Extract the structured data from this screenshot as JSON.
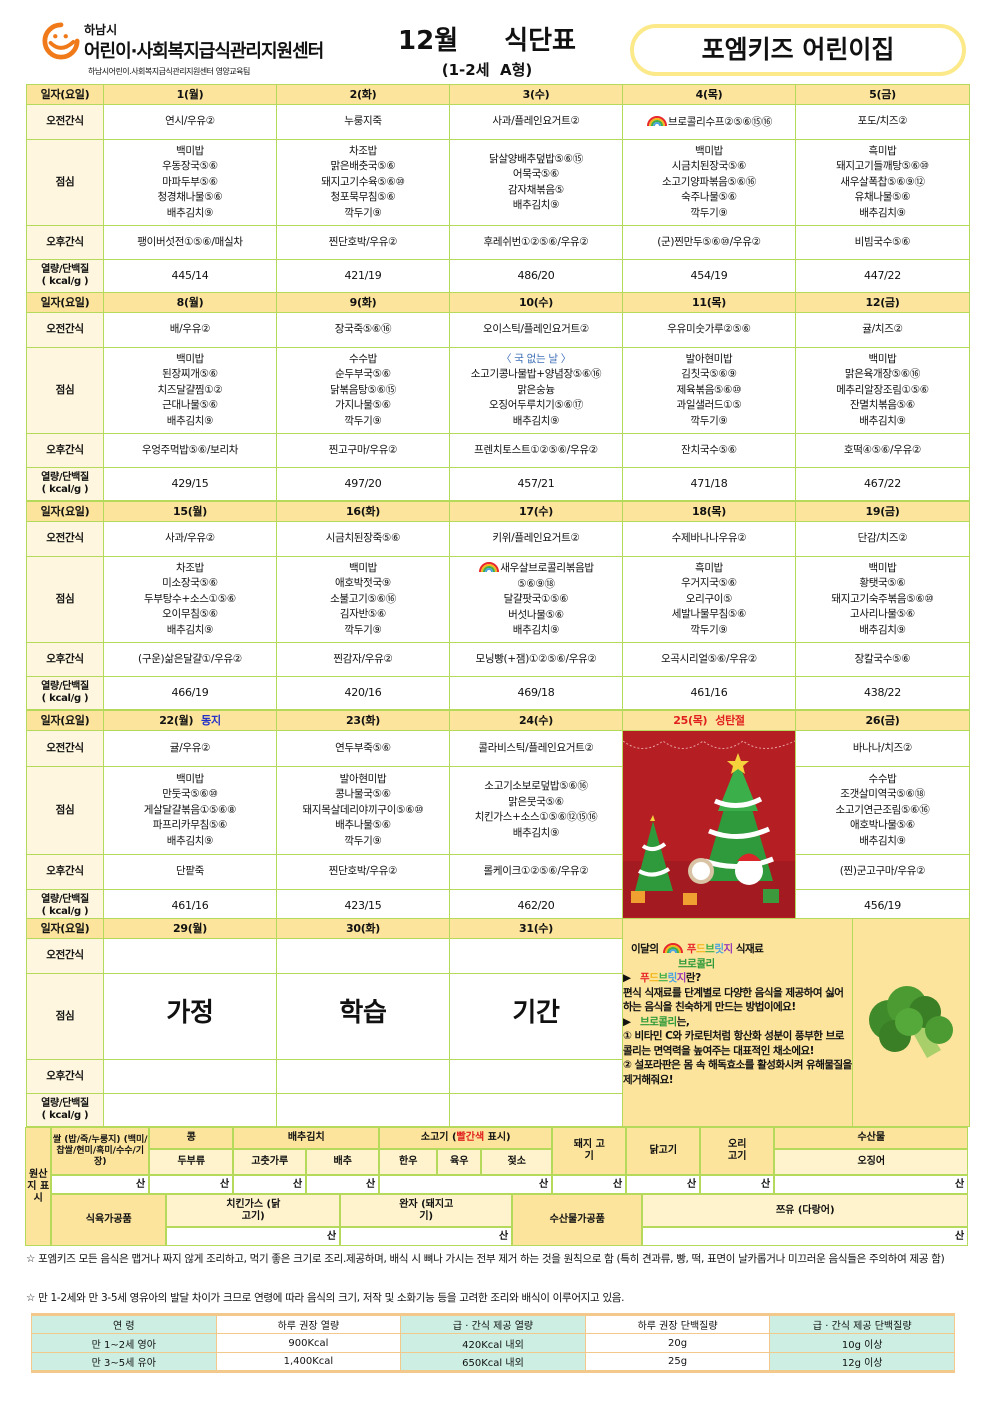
{
  "header": {
    "org_city": "하남시",
    "org_name": "어린이·사회복지급식관리지원센터",
    "org_sub": "하남시어린이.사회복지급식관리지원센터 영양교육팀",
    "title": "12월  식단표",
    "subtitle": "(1-2세  A형)",
    "school": "포엠키즈 어린이집"
  },
  "row_labels": {
    "date": "일자(요일)",
    "morning": "오전간식",
    "lunch": "점심",
    "afternoon": "오후간식",
    "nutrition_1": "열량/단백질",
    "nutrition_2": "( kcal/g )"
  },
  "weeks": [
    {
      "days": [
        {
          "date": "1(월)",
          "morning": "연시/우유②",
          "lunch": [
            "백미밥",
            "우동장국⑤⑥",
            "마파두부⑤⑥",
            "청경채나물⑤⑥",
            "배추김치⑨"
          ],
          "afternoon": "팽이버섯전①⑤⑥/매실차",
          "nutrition": "445/14"
        },
        {
          "date": "2(화)",
          "morning": "누룽지죽",
          "lunch": [
            "차조밥",
            "맑은배춧국⑤⑥",
            "돼지고기수육⑤⑥⑩",
            "청포묵무침⑤⑥",
            "깍두기⑨"
          ],
          "afternoon": "찐단호박/우유②",
          "nutrition": "421/19"
        },
        {
          "date": "3(수)",
          "morning": "사과/플레인요거트②",
          "lunch": [
            "닭살양배추덮밥⑤⑥⑮",
            "어묵국⑤⑥",
            "감자채볶음⑤",
            "배추김치⑨"
          ],
          "afternoon": "후레쉬번①②⑤⑥/우유②",
          "nutrition": "486/20"
        },
        {
          "date": "4(목)",
          "morning": "브로콜리수프②⑤⑥⑮⑯",
          "morning_icon": "rainbow-icon",
          "lunch": [
            "백미밥",
            "시금치된장국⑤⑥",
            "소고기양파볶음⑤⑥⑯",
            "숙주나물⑤⑥",
            "깍두기⑨"
          ],
          "afternoon": "(군)찐만두⑤⑥⑩/우유②",
          "nutrition": "454/19"
        },
        {
          "date": "5(금)",
          "morning": "포도/치즈②",
          "lunch": [
            "흑미밥",
            "돼지고기들깨탕⑤⑥⑩",
            "새우살폭찹⑤⑥⑨⑫",
            "유채나물⑤⑥",
            "배추김치⑨"
          ],
          "afternoon": "비빔국수⑤⑥",
          "nutrition": "447/22"
        }
      ]
    },
    {
      "days": [
        {
          "date": "8(월)",
          "morning": "배/우유②",
          "lunch": [
            "백미밥",
            "된장찌개⑤⑥",
            "치즈달걀찜①②",
            "근대나물⑤⑥",
            "배추김치⑨"
          ],
          "afternoon": "우엉주먹밥⑤⑥/보리차",
          "nutrition": "429/15"
        },
        {
          "date": "9(화)",
          "morning": "장국죽⑤⑥⑯",
          "lunch": [
            "수수밥",
            "순두부국⑤⑥",
            "닭볶음탕⑤⑥⑮",
            "가지나물⑤⑥",
            "깍두기⑨"
          ],
          "afternoon": "찐고구마/우유②",
          "nutrition": "497/20"
        },
        {
          "date": "10(수)",
          "morning": "오이스틱/플레인요거트②",
          "lunch_note": "〈 국 없는 날 〉",
          "lunch": [
            "소고기콩나물밥+양념장⑤⑥⑯",
            "맑은숭늉",
            "오징어두루치기⑤⑥⑰",
            "배추김치⑨"
          ],
          "afternoon": "프렌치토스트①②⑤⑥/우유②",
          "nutrition": "457/21"
        },
        {
          "date": "11(목)",
          "morning": "우유미숫가루②⑤⑥",
          "lunch": [
            "발아현미밥",
            "김칫국⑤⑥⑨",
            "제육볶음⑤⑥⑩",
            "과일샐러드①⑤",
            "깍두기⑨"
          ],
          "afternoon": "잔치국수⑤⑥",
          "nutrition": "471/18"
        },
        {
          "date": "12(금)",
          "morning": "귤/치즈②",
          "lunch": [
            "백미밥",
            "맑은육개장⑤⑥⑯",
            "메추리알장조림①⑤⑥",
            "잔멸치볶음⑤⑥",
            "배추김치⑨"
          ],
          "afternoon": "호떡④⑤⑥/우유②",
          "nutrition": "467/22"
        }
      ]
    },
    {
      "days": [
        {
          "date": "15(월)",
          "morning": "사과/우유②",
          "lunch": [
            "차조밥",
            "미소장국⑤⑥",
            "두부탕수+소스①⑤⑥",
            "오이무침⑤⑥",
            "배추김치⑨"
          ],
          "afternoon": "(구운)삶은달걀①/우유②",
          "nutrition": "466/19"
        },
        {
          "date": "16(화)",
          "morning": "시금치된장죽⑤⑥",
          "lunch": [
            "백미밥",
            "애호박젓국⑨",
            "소불고기⑤⑥⑯",
            "김자반⑤⑥",
            "깍두기⑨"
          ],
          "afternoon": "찐감자/우유②",
          "nutrition": "420/16"
        },
        {
          "date": "17(수)",
          "morning": "키위/플레인요거트②",
          "lunch_icon": "rainbow-icon",
          "lunch": [
            "새우살브로콜리볶음밥",
            "⑤⑥⑨⑱",
            "달걀팟국①⑤⑥",
            "버섯나물⑤⑥",
            "배추김치⑨"
          ],
          "afternoon": "모닝빵(+잼)①②⑤⑥/우유②",
          "nutrition": "469/18"
        },
        {
          "date": "18(목)",
          "morning": "수제바나나우유②",
          "lunch": [
            "흑미밥",
            "우거지국⑤⑥",
            "오리구이⑤",
            "세발나물무침⑤⑥",
            "깍두기⑨"
          ],
          "afternoon": "오곡시리얼⑤⑥/우유②",
          "nutrition": "461/16"
        },
        {
          "date": "19(금)",
          "morning": "단감/치즈②",
          "lunch": [
            "백미밥",
            "황탯국⑤⑥",
            "돼지고기숙주볶음⑤⑥⑩",
            "고사리나물⑤⑥",
            "배추김치⑨"
          ],
          "afternoon": "장칼국수⑤⑥",
          "nutrition": "438/22"
        }
      ]
    },
    {
      "days": [
        {
          "date": "22(월)",
          "note": "동지",
          "note_color": "blue",
          "morning": "귤/우유②",
          "lunch": [
            "백미밥",
            "만둣국⑤⑥⑩",
            "게살달걀볶음①⑤⑥⑧",
            "파프리카무침⑤⑥",
            "배추김치⑨"
          ],
          "afternoon": "단팥죽",
          "nutrition": "461/16"
        },
        {
          "date": "23(화)",
          "morning": "연두부죽⑤⑥",
          "lunch": [
            "발아현미밥",
            "콩나물국⑤⑥",
            "돼지목살데리야끼구이⑤⑥⑩",
            "배추나물⑤⑥",
            "깍두기⑨"
          ],
          "afternoon": "찐단호박/우유②",
          "nutrition": "423/15"
        },
        {
          "date": "24(수)",
          "morning": "콜라비스틱/플레인요거트②",
          "lunch": [
            "소고기소보로덮밥⑤⑥⑯",
            "맑은뭇국⑤⑥",
            "치킨가스+소스①⑤⑥⑫⑮⑯",
            "배추김치⑨"
          ],
          "afternoon": "롤케이크①②⑤⑥/우유②",
          "nutrition": "462/20"
        },
        {
          "date": "25(목)",
          "note": "성탄절",
          "note_color": "red",
          "holiday": true
        },
        {
          "date": "26(금)",
          "morning": "바나나/치즈②",
          "lunch": [
            "수수밥",
            "조갯살미역국⑤⑥⑱",
            "소고기연근조림⑤⑥⑯",
            "애호박나물⑤⑥",
            "배추김치⑨"
          ],
          "afternoon": "(찐)군고구마/우유②",
          "nutrition": "456/19"
        }
      ]
    },
    {
      "days": [
        {
          "date": "29(월)",
          "morning": "",
          "lunch_big": "가정",
          "afternoon": "",
          "nutrition": ""
        },
        {
          "date": "30(화)",
          "morning": "",
          "lunch_big": "학습",
          "afternoon": "",
          "nutrition": ""
        },
        {
          "date": "31(수)",
          "morning": "",
          "lunch_big": "기간",
          "afternoon": "",
          "nutrition": ""
        }
      ]
    }
  ],
  "info": {
    "prefix": "이달의",
    "foodbridge": [
      "푸",
      "드",
      "브",
      "릿",
      "지"
    ],
    "foodbridge_colors": [
      "#e8262b",
      "#f2b61c",
      "#3dae4a",
      "#4aa3e0",
      "#9b3bb5"
    ],
    "suffix": "식재료",
    "ingredient": "브로콜리",
    "q1_suffix": "란?",
    "desc": "편식 식재료를 단계별로 다양한 음식을 제공하여 싫어하는 음식을 친숙하게 만드는 방법이에요!",
    "q2_suffix": "는,",
    "point1": "① 비타민 C와 카로틴처럼 항산화 성분이 풍부한 브로콜리는 면역력을 높여주는 대표적인 채소에요!",
    "point2": "② 설포라판은 몸 속 해독효소를 활성화시켜 유해물질을 제거해줘요!",
    "green": "#2e9a3a"
  },
  "origin": {
    "label": "원산지 표시",
    "rice": "쌀 (밥/죽/누룽지) (백미/찹쌀/현미/흑미/수수/기장)",
    "bean": "콩",
    "tofu": "두부류",
    "kimchi": "배추김치",
    "pepper": "고춧가루",
    "cabbage": "배추",
    "beef_1": "소고기 (",
    "beef_red": "빨간색",
    "beef_2": " 표시)",
    "hanwoo": "한우",
    "yukwoo": "육우",
    "jeotso": "젖소",
    "pork": "돼지 고기",
    "chicken": "닭고기",
    "duck": "오리 고기",
    "seafood": "수산물",
    "squid": "오징어",
    "san": "산",
    "meat_processed": "식육가공품",
    "cutlet": "치킨가스 (닭고기)",
    "wanja": "완자 (돼지고기)",
    "sea_processed": "수산물가공품",
    "tsuyu": "쯔유 (다랑어)"
  },
  "notes": [
    "☆ 포엠키즈 모든 음식은 맵거나 짜지 않게 조리하고, 먹기 좋은 크기로 조리.제공하며, 배식 시 뼈나 가시는 전부 제거 하는 것을 원칙으로 함 (특히 견과류, 빵, 떡, 표면이 날카롭거나 미끄러운 음식들은 주의하여 제공 함)",
    "☆ 만 1-2세와 만 3-5세 영유아의 발달 차이가 크므로 연령에 따라 음식의 크기, 저작 및 소화기능 등을 고려한 조리와 배식이 이루어지고 있음."
  ],
  "nutrition_table": {
    "headers": [
      "연 령",
      "하루 권장 열량",
      "급 · 간식 제공 열량",
      "하루 권장 단백질량",
      "급 · 간식 제공 단백질량"
    ],
    "rows": [
      [
        "만 1~2세 영아",
        "900Kcal",
        "420Kcal 내외",
        "20g",
        "10g 이상"
      ],
      [
        "만 3~5세 유아",
        "1,400Kcal",
        "650Kcal 내외",
        "25g",
        "12g 이상"
      ]
    ]
  },
  "colors": {
    "border": "#b5d95a",
    "header_bg": "#fce49c",
    "label_bg": "#fef6de",
    "accent_orange": "#f07a1a",
    "holiday_red": "#e02020",
    "note_blue": "#2330c8",
    "mint": "#cdefe3"
  }
}
